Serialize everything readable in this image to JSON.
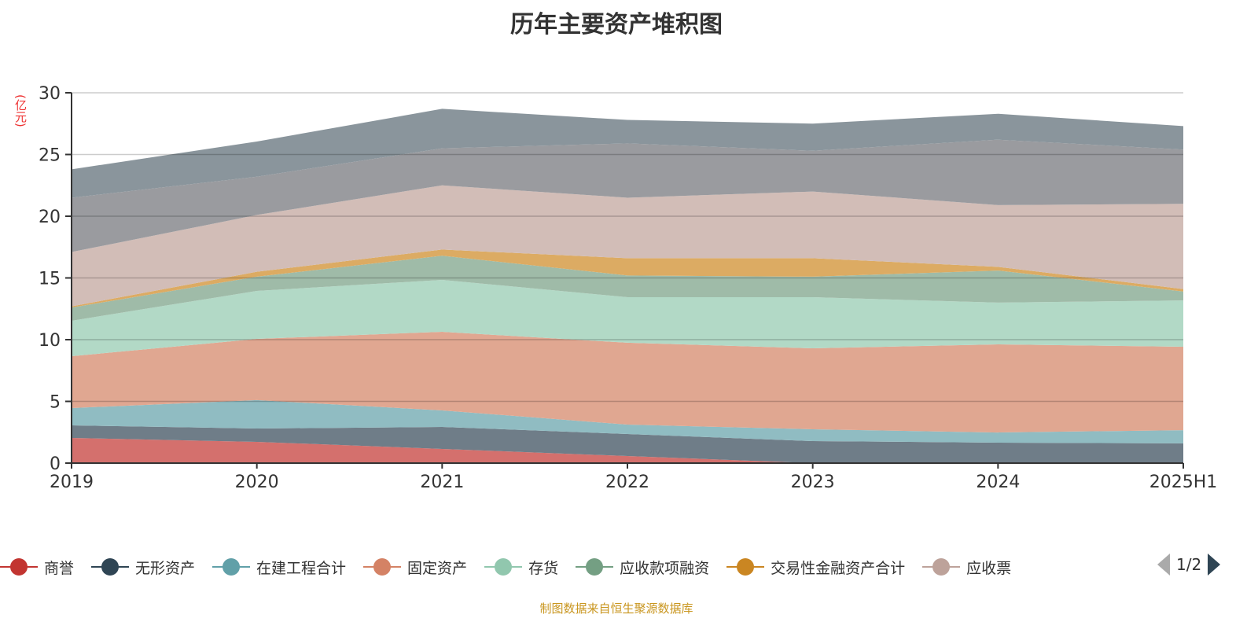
{
  "chart_data": {
    "type": "area",
    "stacked": true,
    "title": "历年主要资产堆积图",
    "ylabel": "(亿元)",
    "ylim": [
      0,
      30
    ],
    "yticks": [
      0,
      5,
      10,
      15,
      20,
      25,
      30
    ],
    "categories": [
      "2019",
      "2020",
      "2021",
      "2022",
      "2023",
      "2024",
      "2025H1"
    ],
    "grid": true,
    "legend_position": "bottom",
    "legend_page": "1/2",
    "series": [
      {
        "name": "商誉",
        "color": "#c23531",
        "fill": "#d4706d",
        "values": [
          2.04,
          1.72,
          1.15,
          0.57,
          0,
          0,
          0
        ]
      },
      {
        "name": "无形资产",
        "color": "#2f4554",
        "fill": "#6f7d88",
        "values": [
          1.02,
          1.08,
          1.78,
          1.79,
          1.78,
          1.66,
          1.6
        ]
      },
      {
        "name": "在建工程合计",
        "color": "#61a0a8",
        "fill": "#90bcc2",
        "values": [
          1.4,
          2.3,
          1.34,
          0.76,
          0.96,
          0.82,
          1.07
        ]
      },
      {
        "name": "固定资产",
        "color": "#d48265",
        "fill": "#e0a791",
        "values": [
          4.2,
          4.96,
          6.37,
          6.63,
          6.56,
          7.14,
          6.76
        ]
      },
      {
        "name": "存货",
        "color": "#91c7ae",
        "fill": "#b2d9c6",
        "values": [
          2.87,
          3.89,
          4.2,
          3.69,
          4.14,
          3.38,
          3.75
        ]
      },
      {
        "name": "应收款项融资",
        "color": "#749f83",
        "fill": "#9fbba8",
        "values": [
          1.07,
          1.15,
          1.96,
          1.76,
          1.66,
          2.6,
          0.72
        ]
      },
      {
        "name": "交易性金融资产合计",
        "color": "#ca8622",
        "fill": "#dcab63",
        "values": [
          0.1,
          0.4,
          0.5,
          1.4,
          1.5,
          0.3,
          0.2
        ]
      },
      {
        "name": "应收票",
        "color": "#bda29a",
        "fill": "#d2bdb7",
        "values": [
          4.4,
          4.6,
          5.2,
          4.9,
          5.4,
          5.0,
          6.9
        ]
      },
      {
        "name": "",
        "color": "#6e7074",
        "fill": "#9a9b9f",
        "values": [
          4.4,
          3.1,
          3.0,
          4.4,
          3.3,
          5.3,
          4.4
        ]
      },
      {
        "name": "",
        "color": "#546570",
        "fill": "#8a959c",
        "values": [
          2.3,
          2.85,
          3.2,
          1.9,
          2.2,
          2.1,
          1.9
        ]
      }
    ]
  },
  "source": "制图数据来自恒生聚源数据库"
}
